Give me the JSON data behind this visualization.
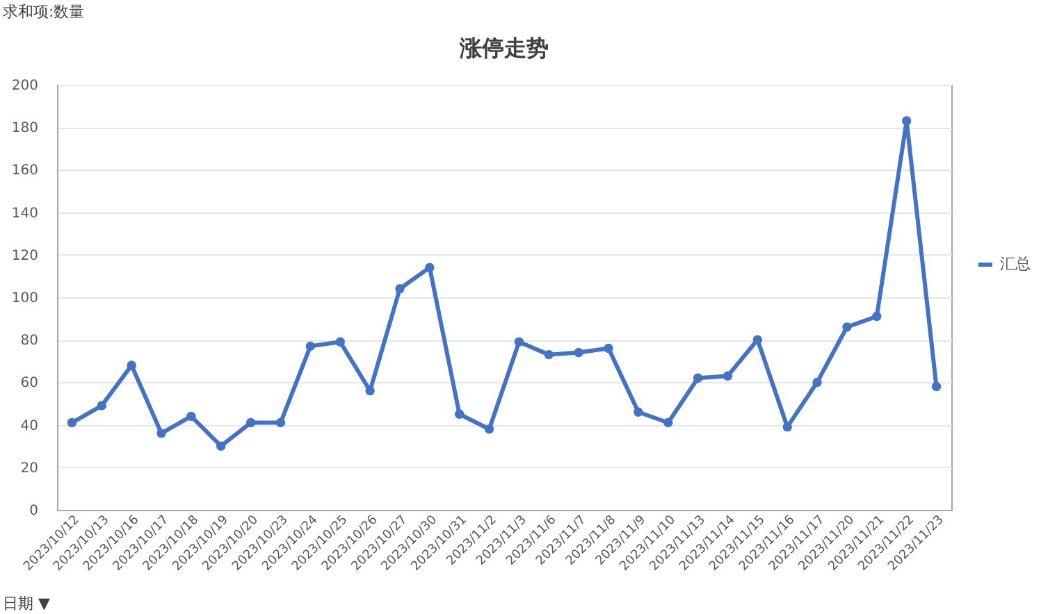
{
  "chart_data": {
    "type": "line",
    "title": "涨停走势",
    "categories": [
      "2023/10/12",
      "2023/10/13",
      "2023/10/16",
      "2023/10/17",
      "2023/10/18",
      "2023/10/19",
      "2023/10/20",
      "2023/10/23",
      "2023/10/24",
      "2023/10/25",
      "2023/10/26",
      "2023/10/27",
      "2023/10/30",
      "2023/10/31",
      "2023/11/2",
      "2023/11/3",
      "2023/11/6",
      "2023/11/7",
      "2023/11/8",
      "2023/11/9",
      "2023/11/10",
      "2023/11/13",
      "2023/11/14",
      "2023/11/15",
      "2023/11/16",
      "2023/11/17",
      "2023/11/20",
      "2023/11/21",
      "2023/11/22",
      "2023/11/23"
    ],
    "series": [
      {
        "name": "汇总",
        "color": "#4472c4",
        "values": [
          41,
          49,
          68,
          36,
          44,
          30,
          41,
          41,
          77,
          79,
          56,
          104,
          114,
          45,
          38,
          79,
          73,
          74,
          76,
          46,
          41,
          62,
          63,
          80,
          39,
          60,
          86,
          91,
          183,
          58
        ]
      }
    ],
    "ylim": [
      0,
      200
    ],
    "yticks": [
      0,
      20,
      40,
      60,
      80,
      100,
      120,
      140,
      160,
      180,
      200
    ],
    "grid": "y",
    "legend": "right",
    "marker": "circle",
    "line_style": "solid",
    "annotations": [
      "求和项:数量",
      "日期 ▼"
    ]
  }
}
